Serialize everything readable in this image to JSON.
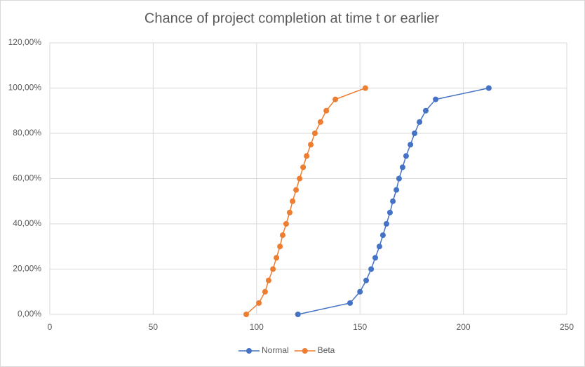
{
  "chart_data": {
    "type": "scatter",
    "title": "Chance of project completion at time t or earlier",
    "xlim": [
      0,
      250
    ],
    "xticks": [
      0,
      50,
      100,
      150,
      200,
      250
    ],
    "ylim": [
      0,
      120
    ],
    "yticks": [
      {
        "value": 0,
        "label": "0,00%"
      },
      {
        "value": 20,
        "label": "20,00%"
      },
      {
        "value": 40,
        "label": "40,00%"
      },
      {
        "value": 60,
        "label": "60,00%"
      },
      {
        "value": 80,
        "label": "80,00%"
      },
      {
        "value": 100,
        "label": "100,00%"
      },
      {
        "value": 120,
        "label": "120,00%"
      }
    ],
    "grid": true,
    "legend": "bottom",
    "series": [
      {
        "name": "Normal",
        "color": "#4472c4",
        "x": [
          120,
          145.2,
          150,
          153,
          155.4,
          157.4,
          159.4,
          161.1,
          162.8,
          164.5,
          165.9,
          167.6,
          168.9,
          170.6,
          172.3,
          174.4,
          176.4,
          178.8,
          181.8,
          186.6,
          212.3
        ],
        "values": [
          0,
          5,
          10,
          15,
          20,
          25,
          30,
          35,
          40,
          45,
          50,
          55,
          60,
          65,
          70,
          75,
          80,
          85,
          90,
          95,
          100
        ]
      },
      {
        "name": "Beta",
        "color": "#ed7d31",
        "x": [
          95,
          101.1,
          104.1,
          105.8,
          107.9,
          109.6,
          111.3,
          112.6,
          114.3,
          116,
          117.4,
          119.1,
          120.8,
          122.5,
          124.2,
          126.2,
          128.2,
          130.9,
          133.7,
          138.1,
          152.6
        ],
        "values": [
          0,
          5,
          10,
          15,
          20,
          25,
          30,
          35,
          40,
          45,
          50,
          55,
          60,
          65,
          70,
          75,
          80,
          85,
          90,
          95,
          100
        ]
      }
    ]
  }
}
